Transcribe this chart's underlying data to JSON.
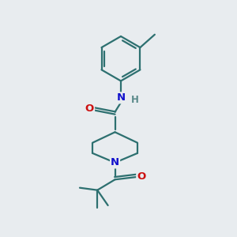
{
  "bg_color": "#e8ecef",
  "bond_color": "#2d7070",
  "atom_colors": {
    "N": "#1010cc",
    "O": "#cc1010",
    "H": "#5a8a8a"
  },
  "figsize": [
    3.0,
    3.0
  ],
  "dpi": 100
}
